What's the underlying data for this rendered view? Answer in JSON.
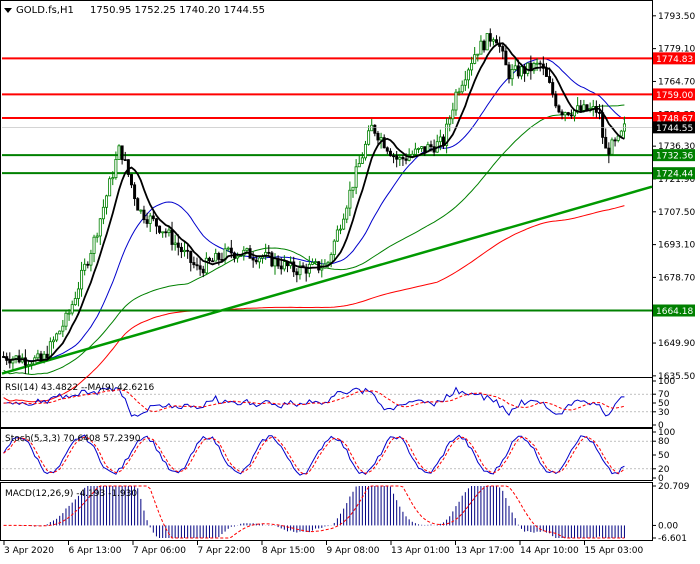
{
  "chart_data": {
    "type": "candlestick",
    "symbol": "GOLD.fs,H1",
    "ohlc_text": "1750.95 1752.25 1740.20 1744.55",
    "x_labels": [
      "3 Apr 2020",
      "6 Apr 13:00",
      "7 Apr 06:00",
      "7 Apr 22:00",
      "8 Apr 15:00",
      "9 Apr 08:00",
      "13 Apr 01:00",
      "13 Apr 17:00",
      "14 Apr 10:00",
      "15 Apr 03:00"
    ],
    "price": {
      "ylim": [
        1635.0,
        1800.0
      ],
      "ticks": [
        1793.5,
        1779.1,
        1764.7,
        1750.25,
        1736.3,
        1721.9,
        1707.5,
        1693.1,
        1678.7,
        1664.25,
        1649.9,
        1635.5
      ],
      "levels": [
        {
          "value": 1774.83,
          "label": "1774.83",
          "color": "#ff0000"
        },
        {
          "value": 1759.0,
          "label": "1759.00",
          "color": "#ff0000"
        },
        {
          "value": 1748.67,
          "label": "1748.67",
          "color": "#ff0000"
        },
        {
          "value": 1732.36,
          "label": "1732.36",
          "color": "#008000"
        },
        {
          "value": 1724.44,
          "label": "1724.44",
          "color": "#008000"
        },
        {
          "value": 1664.18,
          "label": "1664.18",
          "color": "#008000"
        }
      ],
      "current": {
        "value": 1744.55,
        "label": "1744.55"
      },
      "trendline": {
        "from": [
          0,
          1636.5
        ],
        "to": [
          1,
          1718.5
        ],
        "color": "#009900"
      },
      "ma_colors": {
        "fast": "#000000",
        "mid": "#0000cc",
        "slow": "#008000",
        "long": "#ff0000"
      },
      "candle_colors": {
        "up": "#008000",
        "down": "#000000"
      }
    },
    "rsi": {
      "label": "RSI(14) 43.4822   --MA(9) 42.6216",
      "ticks": [
        100,
        70,
        50,
        30,
        0
      ],
      "ylim": [
        0,
        100
      ]
    },
    "stoch": {
      "label": "Stoch(5,3,3) 70.6408 57.2390",
      "ticks": [
        100,
        80,
        50,
        20,
        0
      ],
      "ylim": [
        0,
        100
      ]
    },
    "macd": {
      "label": "MACD(12,26,9) -4.193 -1.930",
      "ticks": [
        20.709,
        0.0,
        -6.601
      ],
      "ylim": [
        -6.601,
        20.709
      ]
    }
  }
}
